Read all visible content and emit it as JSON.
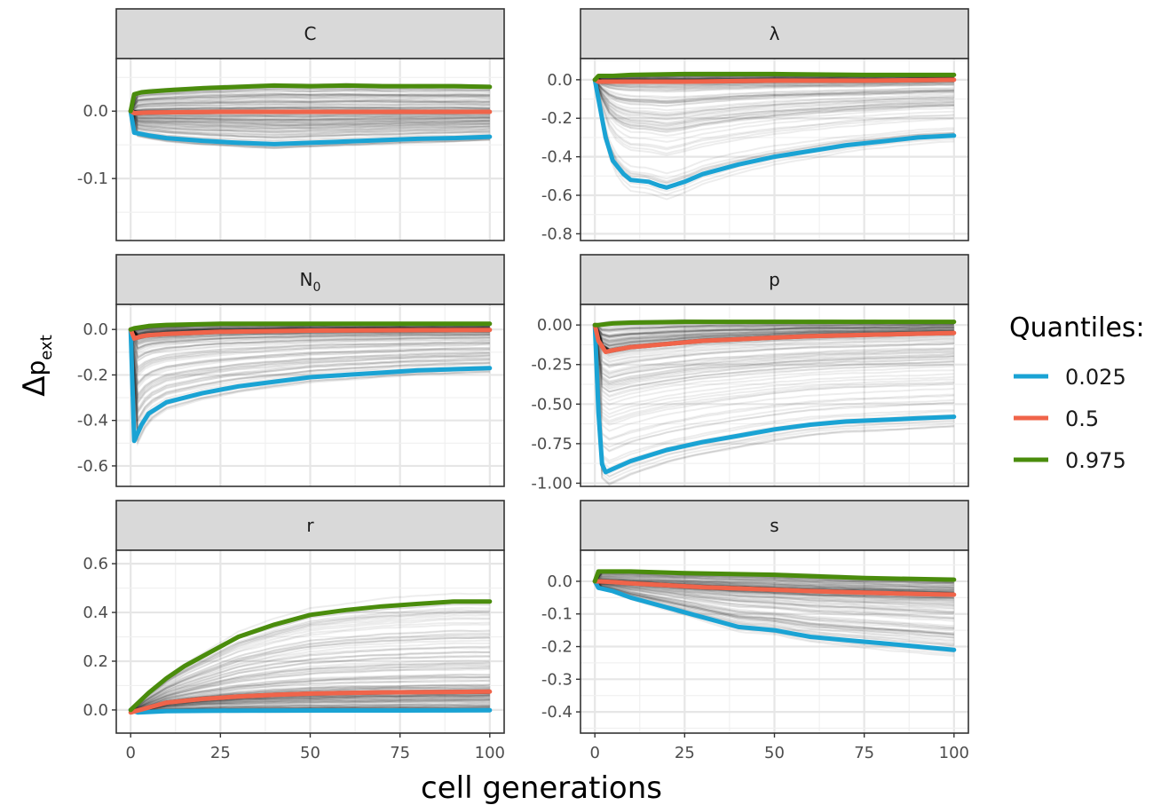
{
  "chart_data": {
    "type": "line",
    "xlabel": "cell generations",
    "ylabel": "Δp_ext",
    "ylabel_symbol": "Δ",
    "ylabel_base": "p",
    "ylabel_sub": "ext",
    "xlim": [
      -4,
      104
    ],
    "x_ticks": [
      0,
      25,
      50,
      75,
      100
    ],
    "legend": {
      "title": "Quantiles:",
      "position": "right",
      "entries": [
        {
          "label": "0.025",
          "color": "#1aa3d4"
        },
        {
          "label": "0.5",
          "color": "#f0644a"
        },
        {
          "label": "0.975",
          "color": "#4a8c0c"
        }
      ]
    },
    "background_traces_color": "#000000",
    "grid": true,
    "panels": [
      {
        "strip": "C",
        "strip_base": "C",
        "strip_sub": "",
        "ylim": [
          -0.192,
          0.078
        ],
        "y_ticks": [
          0.0,
          -0.1
        ],
        "y_tick_labels": [
          "0.0",
          "-0.1"
        ],
        "series": [
          {
            "name": "0.025",
            "x": [
              0,
              1,
              3,
              5,
              10,
              20,
              30,
              40,
              50,
              60,
              70,
              80,
              90,
              100
            ],
            "y": [
              0.0,
              -0.032,
              -0.034,
              -0.036,
              -0.04,
              -0.044,
              -0.047,
              -0.049,
              -0.047,
              -0.045,
              -0.043,
              -0.041,
              -0.04,
              -0.038
            ]
          },
          {
            "name": "0.5",
            "x": [
              0,
              1,
              5,
              25,
              50,
              75,
              100
            ],
            "y": [
              0.0,
              -0.003,
              -0.002,
              -0.001,
              -0.001,
              -0.001,
              -0.001
            ]
          },
          {
            "name": "0.975",
            "x": [
              0,
              1,
              3,
              5,
              10,
              20,
              30,
              40,
              50,
              60,
              70,
              80,
              90,
              100
            ],
            "y": [
              0.0,
              0.025,
              0.028,
              0.029,
              0.031,
              0.034,
              0.036,
              0.038,
              0.037,
              0.038,
              0.037,
              0.037,
              0.037,
              0.036
            ]
          }
        ]
      },
      {
        "strip": "λ",
        "strip_base": "λ",
        "strip_sub": "",
        "ylim": [
          -0.835,
          0.11
        ],
        "y_ticks": [
          0.0,
          -0.2,
          -0.4,
          -0.6,
          -0.8
        ],
        "y_tick_labels": [
          "0.0",
          "-0.2",
          "-0.4",
          "-0.6",
          "-0.8"
        ],
        "series": [
          {
            "name": "0.025",
            "x": [
              0,
              1,
              3,
              5,
              8,
              10,
              15,
              18,
              20,
              25,
              30,
              40,
              50,
              60,
              70,
              80,
              90,
              100
            ],
            "y": [
              0.0,
              -0.1,
              -0.3,
              -0.42,
              -0.49,
              -0.52,
              -0.53,
              -0.55,
              -0.56,
              -0.53,
              -0.49,
              -0.44,
              -0.4,
              -0.37,
              -0.34,
              -0.32,
              -0.3,
              -0.29
            ]
          },
          {
            "name": "0.5",
            "x": [
              0,
              1,
              5,
              25,
              50,
              75,
              100
            ],
            "y": [
              0.0,
              -0.01,
              -0.01,
              -0.01,
              -0.005,
              -0.005,
              0.0
            ]
          },
          {
            "name": "0.975",
            "x": [
              0,
              1,
              5,
              10,
              25,
              50,
              75,
              100
            ],
            "y": [
              0.0,
              0.02,
              0.02,
              0.025,
              0.03,
              0.03,
              0.025,
              0.025
            ]
          }
        ]
      },
      {
        "strip": "N0",
        "strip_base": "N",
        "strip_sub": "0",
        "ylim": [
          -0.69,
          0.11
        ],
        "y_ticks": [
          0.0,
          -0.2,
          -0.4,
          -0.6
        ],
        "y_tick_labels": [
          "0.0",
          "-0.2",
          "-0.4",
          "-0.6"
        ],
        "series": [
          {
            "name": "0.025",
            "x": [
              0,
              1,
              3,
              5,
              10,
              20,
              30,
              40,
              50,
              60,
              70,
              80,
              90,
              100
            ],
            "y": [
              0.0,
              -0.49,
              -0.42,
              -0.37,
              -0.32,
              -0.28,
              -0.25,
              -0.23,
              -0.21,
              -0.2,
              -0.19,
              -0.18,
              -0.175,
              -0.17
            ]
          },
          {
            "name": "0.5",
            "x": [
              0,
              1,
              3,
              5,
              10,
              25,
              50,
              75,
              100
            ],
            "y": [
              0.0,
              -0.04,
              -0.03,
              -0.025,
              -0.02,
              -0.01,
              -0.005,
              -0.003,
              -0.002
            ]
          },
          {
            "name": "0.975",
            "x": [
              0,
              1,
              5,
              10,
              25,
              50,
              75,
              100
            ],
            "y": [
              0.0,
              0.005,
              0.015,
              0.02,
              0.025,
              0.025,
              0.025,
              0.025
            ]
          }
        ]
      },
      {
        "strip": "p",
        "strip_base": "p",
        "strip_sub": "",
        "ylim": [
          -1.02,
          0.13
        ],
        "y_ticks": [
          0.0,
          -0.25,
          -0.5,
          -0.75,
          -1.0
        ],
        "y_tick_labels": [
          "0.00",
          "-0.25",
          "-0.50",
          "-0.75",
          "-1.00"
        ],
        "series": [
          {
            "name": "0.025",
            "x": [
              0,
              1,
              2,
              3,
              5,
              10,
              20,
              30,
              40,
              50,
              60,
              70,
              80,
              90,
              100
            ],
            "y": [
              0.0,
              -0.55,
              -0.88,
              -0.93,
              -0.91,
              -0.86,
              -0.79,
              -0.74,
              -0.7,
              -0.66,
              -0.63,
              -0.61,
              -0.6,
              -0.59,
              -0.58
            ]
          },
          {
            "name": "0.5",
            "x": [
              0,
              1,
              3,
              5,
              10,
              20,
              30,
              40,
              50,
              60,
              70,
              80,
              90,
              100
            ],
            "y": [
              0.0,
              -0.1,
              -0.17,
              -0.16,
              -0.14,
              -0.12,
              -0.1,
              -0.09,
              -0.08,
              -0.07,
              -0.065,
              -0.06,
              -0.055,
              -0.05
            ]
          },
          {
            "name": "0.975",
            "x": [
              0,
              1,
              5,
              10,
              25,
              50,
              75,
              100
            ],
            "y": [
              0.0,
              0.0,
              0.01,
              0.015,
              0.02,
              0.02,
              0.02,
              0.02
            ]
          }
        ]
      },
      {
        "strip": "r",
        "strip_base": "r",
        "strip_sub": "",
        "ylim": [
          -0.095,
          0.655
        ],
        "y_ticks": [
          0.0,
          0.2,
          0.4,
          0.6
        ],
        "y_tick_labels": [
          "0.0",
          "0.2",
          "0.4",
          "0.6"
        ],
        "series": [
          {
            "name": "0.025",
            "x": [
              0,
              2,
              10,
              25,
              50,
              75,
              100
            ],
            "y": [
              0.0,
              -0.01,
              -0.005,
              -0.003,
              -0.002,
              -0.002,
              -0.001
            ]
          },
          {
            "name": "0.5",
            "x": [
              0,
              5,
              10,
              20,
              30,
              40,
              50,
              60,
              70,
              80,
              90,
              100
            ],
            "y": [
              -0.01,
              0.01,
              0.03,
              0.045,
              0.055,
              0.062,
              0.067,
              0.07,
              0.072,
              0.073,
              0.074,
              0.075
            ]
          },
          {
            "name": "0.975",
            "x": [
              0,
              5,
              10,
              15,
              20,
              25,
              30,
              40,
              50,
              60,
              70,
              80,
              90,
              100
            ],
            "y": [
              0.0,
              0.07,
              0.13,
              0.18,
              0.22,
              0.26,
              0.3,
              0.35,
              0.39,
              0.41,
              0.425,
              0.435,
              0.445,
              0.445
            ]
          }
        ]
      },
      {
        "strip": "s",
        "strip_base": "s",
        "strip_sub": "",
        "ylim": [
          -0.465,
          0.095
        ],
        "y_ticks": [
          0.0,
          -0.1,
          -0.2,
          -0.3,
          -0.4
        ],
        "y_tick_labels": [
          "0.0",
          "-0.1",
          "-0.2",
          "-0.3",
          "-0.4"
        ],
        "series": [
          {
            "name": "0.025",
            "x": [
              0,
              1,
              5,
              10,
              20,
              30,
              40,
              50,
              60,
              70,
              80,
              90,
              100
            ],
            "y": [
              0.0,
              -0.02,
              -0.03,
              -0.05,
              -0.08,
              -0.11,
              -0.14,
              -0.15,
              -0.17,
              -0.18,
              -0.19,
              -0.2,
              -0.21
            ]
          },
          {
            "name": "0.5",
            "x": [
              0,
              5,
              10,
              20,
              30,
              40,
              50,
              60,
              70,
              80,
              90,
              100
            ],
            "y": [
              0.0,
              -0.002,
              -0.006,
              -0.012,
              -0.018,
              -0.022,
              -0.026,
              -0.03,
              -0.033,
              -0.036,
              -0.039,
              -0.041
            ]
          },
          {
            "name": "0.975",
            "x": [
              0,
              1,
              5,
              10,
              25,
              50,
              75,
              100
            ],
            "y": [
              0.0,
              0.03,
              0.03,
              0.03,
              0.025,
              0.02,
              0.01,
              0.005
            ]
          }
        ]
      }
    ]
  }
}
